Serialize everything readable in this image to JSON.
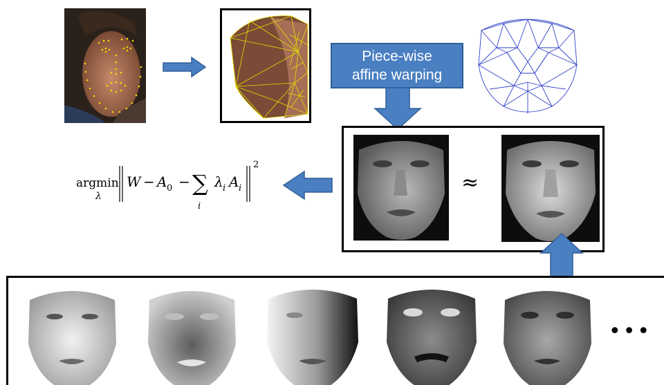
{
  "callout": {
    "line1": "Piece-wise",
    "line2": "affine warping"
  },
  "approx_symbol": "≈",
  "formula": {
    "operator": "argmin",
    "subscript": "λ",
    "W": "W",
    "minus1": "−",
    "A": "A",
    "A_sub0": "0",
    "minus2": "−",
    "sum_symbol": "∑",
    "sum_index": "i",
    "lambda": "λ",
    "lambda_sub": "i",
    "A2": "A",
    "A2_sub": "i",
    "exponent": "2"
  },
  "ellipsis": "•••",
  "colors": {
    "arrow": "#4a7fc1",
    "arrow_border": "#2f5f98",
    "mesh_yellow": "#e6e000",
    "mesh_blue": "#3040c8"
  }
}
